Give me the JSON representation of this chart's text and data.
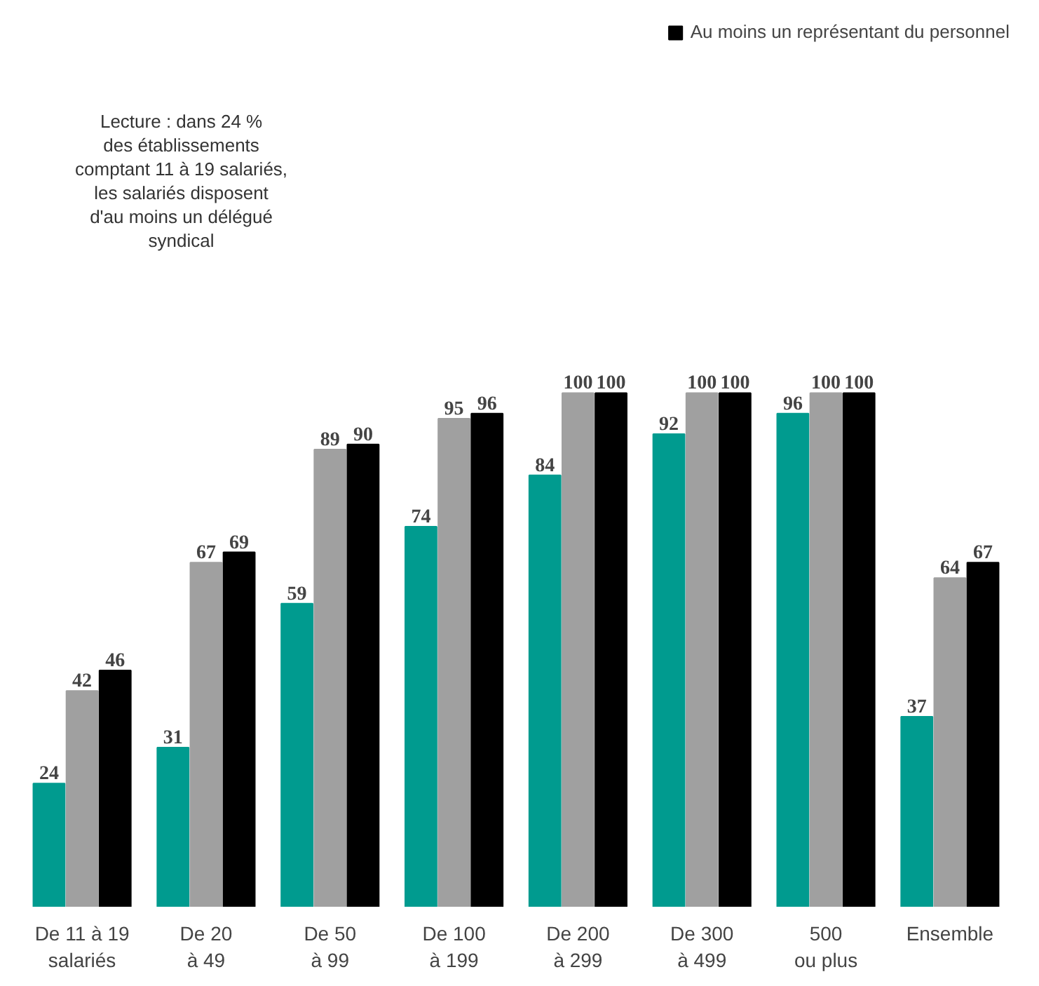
{
  "chart_data": {
    "type": "bar",
    "categories": [
      "De 11 à 19\nsalariés",
      "De 20\nà 49",
      "De 50\nà 99",
      "De 100\nà 199",
      "De 200\nà 299",
      "De 300\nà 499",
      "500\nou plus",
      "Ensemble"
    ],
    "series": [
      {
        "color": "#009b8f",
        "values": [
          24,
          31,
          59,
          74,
          84,
          92,
          96,
          37
        ]
      },
      {
        "color": "#a0a0a0",
        "values": [
          42,
          67,
          89,
          95,
          100,
          100,
          100,
          64
        ]
      },
      {
        "name": "Au moins un représentant du personnel",
        "color": "#000000",
        "values": [
          46,
          69,
          90,
          96,
          100,
          100,
          100,
          67
        ]
      }
    ],
    "data_labels": true,
    "legend": "top",
    "grid": false,
    "annotations": [
      "Lecture : dans 24 %\ndes établissements\ncomptant 11 à 19 salariés,\nles salariés disposent\nd'au moins un délégué\nsyndical"
    ]
  }
}
